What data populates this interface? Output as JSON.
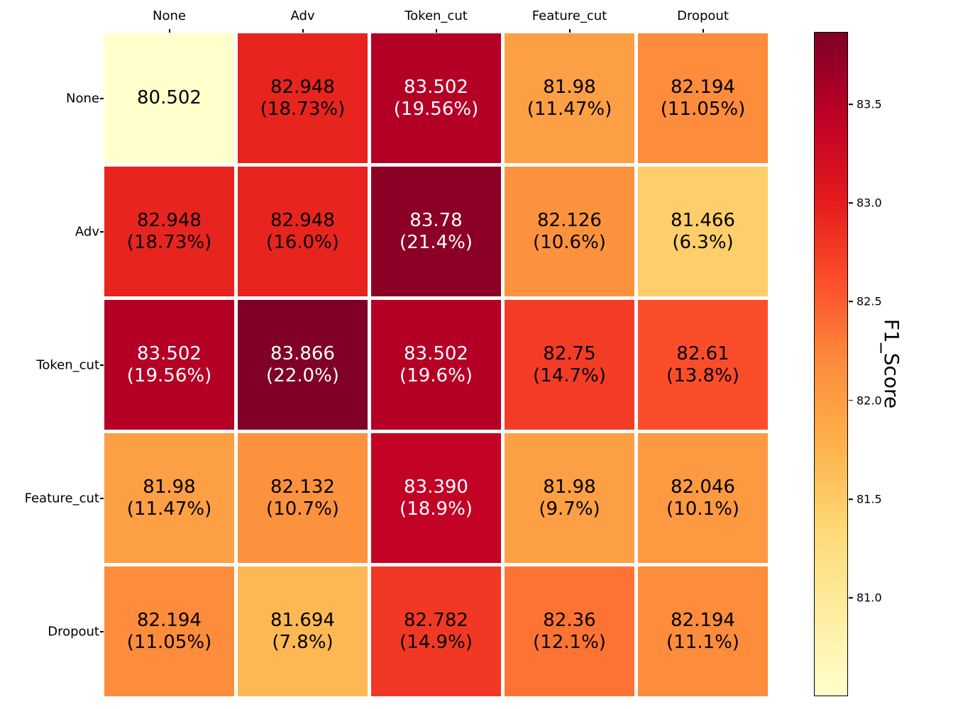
{
  "chart_data": {
    "type": "heatmap",
    "title": "",
    "x_categories": [
      "None",
      "Adv",
      "Token_cut",
      "Feature_cut",
      "Dropout"
    ],
    "y_categories": [
      "None",
      "Adv",
      "Token_cut",
      "Feature_cut",
      "Dropout"
    ],
    "colormap": "YlOrRd",
    "vmin": 80.502,
    "vmax": 83.866,
    "grid": "off",
    "legend": "colorbar-right",
    "cells": [
      [
        {
          "f1": 80.502,
          "label": "80.502",
          "percent": "",
          "bg": "#ffffcc",
          "fg": "#000000"
        },
        {
          "f1": 82.948,
          "label": "82.948",
          "percent": "(18.73%)",
          "bg": "#e8241f",
          "fg": "#000000"
        },
        {
          "f1": 83.502,
          "label": "83.502",
          "percent": "(19.56%)",
          "bg": "#b50026",
          "fg": "#ffffff"
        },
        {
          "f1": 81.98,
          "label": "81.98",
          "percent": "(11.47%)",
          "bg": "#fd9f44",
          "fg": "#000000"
        },
        {
          "f1": 82.194,
          "label": "82.194",
          "percent": "(11.05%)",
          "bg": "#fd8c3c",
          "fg": "#000000"
        }
      ],
      [
        {
          "f1": 82.948,
          "label": "82.948",
          "percent": "(18.73%)",
          "bg": "#e8241f",
          "fg": "#000000"
        },
        {
          "f1": 82.948,
          "label": "82.948",
          "percent": "(16.0%)",
          "bg": "#e8241f",
          "fg": "#000000"
        },
        {
          "f1": 83.78,
          "label": "83.78",
          "percent": "(21.4%)",
          "bg": "#8c0026",
          "fg": "#ffffff"
        },
        {
          "f1": 82.126,
          "label": "82.126",
          "percent": "(10.6%)",
          "bg": "#fd923e",
          "fg": "#000000"
        },
        {
          "f1": 81.466,
          "label": "81.466",
          "percent": "(6.3%)",
          "bg": "#fece6a",
          "fg": "#000000"
        }
      ],
      [
        {
          "f1": 83.502,
          "label": "83.502",
          "percent": "(19.56%)",
          "bg": "#b50026",
          "fg": "#ffffff"
        },
        {
          "f1": 83.866,
          "label": "83.866",
          "percent": "(22.0%)",
          "bg": "#800026",
          "fg": "#ffffff"
        },
        {
          "f1": 83.502,
          "label": "83.502",
          "percent": "(19.6%)",
          "bg": "#b50026",
          "fg": "#ffffff"
        },
        {
          "f1": 82.75,
          "label": "82.75",
          "percent": "(14.7%)",
          "bg": "#f33c25",
          "fg": "#000000"
        },
        {
          "f1": 82.61,
          "label": "82.61",
          "percent": "(13.8%)",
          "bg": "#fc4d2a",
          "fg": "#000000"
        }
      ],
      [
        {
          "f1": 81.98,
          "label": "81.98",
          "percent": "(11.47%)",
          "bg": "#fd9f44",
          "fg": "#000000"
        },
        {
          "f1": 82.132,
          "label": "82.132",
          "percent": "(10.7%)",
          "bg": "#fd923e",
          "fg": "#000000"
        },
        {
          "f1": 83.39,
          "label": "83.390",
          "percent": "(18.9%)",
          "bg": "#c20325",
          "fg": "#ffffff"
        },
        {
          "f1": 81.98,
          "label": "81.98",
          "percent": "(9.7%)",
          "bg": "#fd9f44",
          "fg": "#000000"
        },
        {
          "f1": 82.046,
          "label": "82.046",
          "percent": "(10.1%)",
          "bg": "#fd9941",
          "fg": "#000000"
        }
      ],
      [
        {
          "f1": 82.194,
          "label": "82.194",
          "percent": "(11.05%)",
          "bg": "#fd8c3c",
          "fg": "#000000"
        },
        {
          "f1": 81.694,
          "label": "81.694",
          "percent": "(7.8%)",
          "bg": "#feb853",
          "fg": "#000000"
        },
        {
          "f1": 82.782,
          "label": "82.782",
          "percent": "(14.9%)",
          "bg": "#f13824",
          "fg": "#000000"
        },
        {
          "f1": 82.36,
          "label": "82.36",
          "percent": "(12.1%)",
          "bg": "#fd7334",
          "fg": "#000000"
        },
        {
          "f1": 82.194,
          "label": "82.194",
          "percent": "(11.1%)",
          "bg": "#fd8c3c",
          "fg": "#000000"
        }
      ]
    ],
    "colorbar": {
      "label": "F1_Score",
      "tick_labels": [
        "83.5",
        "83.0",
        "82.5",
        "82.0",
        "81.5",
        "81.0"
      ],
      "tick_values": [
        83.5,
        83.0,
        82.5,
        82.0,
        81.5,
        81.0
      ],
      "gradient_stops_bottom_to_top": [
        "#ffffcc",
        "#ffeda0",
        "#fed976",
        "#feb24c",
        "#fd8d3c",
        "#fc4e2a",
        "#e31a1c",
        "#bd0026",
        "#800026"
      ]
    }
  }
}
